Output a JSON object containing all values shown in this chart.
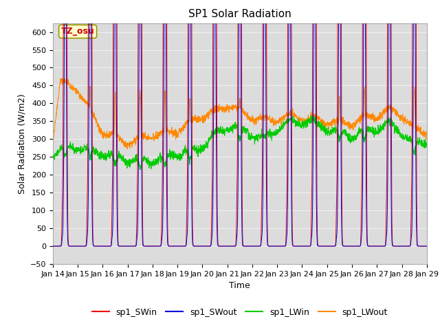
{
  "title": "SP1 Solar Radiation",
  "xlabel": "Time",
  "ylabel": "Solar Radiation (W/m2)",
  "ylim": [
    -50,
    625
  ],
  "yticks": [
    -50,
    0,
    50,
    100,
    150,
    200,
    250,
    300,
    350,
    400,
    450,
    500,
    550,
    600
  ],
  "plot_bg_color": "#dcdcdc",
  "grid_color": "#f0f0f0",
  "colors": {
    "sp1_SWin": "#ee0000",
    "sp1_SWout": "#0000dd",
    "sp1_LWin": "#00cc00",
    "sp1_LWout": "#ff8800"
  },
  "annotation_text": "TZ_osu",
  "annotation_box_color": "#ffffcc",
  "annotation_border_color": "#999900",
  "title_fontsize": 11,
  "axis_label_fontsize": 9,
  "tick_label_fontsize": 8,
  "legend_fontsize": 9,
  "lw_line": 0.7
}
